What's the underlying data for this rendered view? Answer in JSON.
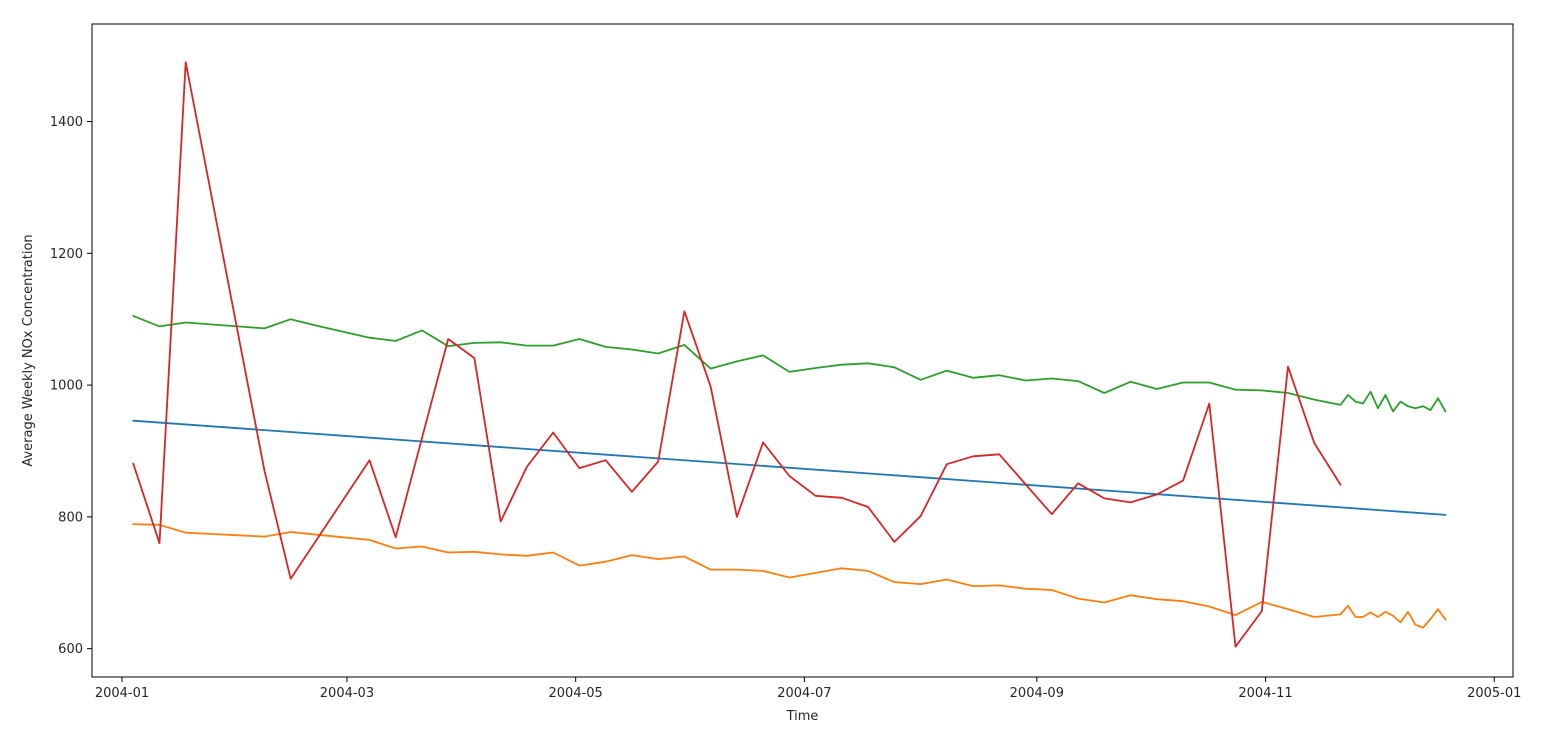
{
  "chart_data": {
    "type": "line",
    "title": "",
    "xlabel": "Time",
    "ylabel": "Average Weekly NOx Concentration",
    "xlim": [
      "2003-12-24",
      "2005-01-06"
    ],
    "ylim": [
      557,
      1548
    ],
    "x_ticks": [
      "2004-01-01",
      "2004-03-01",
      "2004-05-01",
      "2004-07-01",
      "2004-09-01",
      "2004-11-01",
      "2005-01-01"
    ],
    "x_tick_labels": [
      "2004-01",
      "2004-03",
      "2004-05",
      "2004-07",
      "2004-09",
      "2004-11",
      "2005-01"
    ],
    "y_ticks": [
      600,
      800,
      1000,
      1200,
      1400
    ],
    "y_tick_labels": [
      "600",
      "800",
      "1000",
      "1200",
      "1400"
    ],
    "grid": false,
    "legend": "none",
    "series": [
      {
        "color": "#1f77b4",
        "x": [
          "2004-01-04",
          "2004-12-19"
        ],
        "values": [
          946,
          803
        ]
      },
      {
        "color": "#ff7f0e",
        "x": [
          "2004-01-04",
          "2004-01-11",
          "2004-01-18",
          "2004-01-25",
          "2004-02-01",
          "2004-02-08",
          "2004-02-15",
          "2004-02-22",
          "2004-02-29",
          "2004-03-07",
          "2004-03-14",
          "2004-03-21",
          "2004-03-28",
          "2004-04-04",
          "2004-04-11",
          "2004-04-18",
          "2004-04-25",
          "2004-05-02",
          "2004-05-09",
          "2004-05-16",
          "2004-05-23",
          "2004-05-30",
          "2004-06-06",
          "2004-06-13",
          "2004-06-20",
          "2004-06-27",
          "2004-07-04",
          "2004-07-11",
          "2004-07-18",
          "2004-07-25",
          "2004-08-01",
          "2004-08-08",
          "2004-08-15",
          "2004-08-22",
          "2004-08-29",
          "2004-09-05",
          "2004-09-12",
          "2004-09-19",
          "2004-09-26",
          "2004-10-03",
          "2004-10-10",
          "2004-10-17",
          "2004-10-24",
          "2004-10-31",
          "2004-11-07",
          "2004-11-14",
          "2004-11-21",
          "2004-11-23",
          "2004-11-25",
          "2004-11-27",
          "2004-11-29",
          "2004-12-01",
          "2004-12-03",
          "2004-12-05",
          "2004-12-07",
          "2004-12-09",
          "2004-12-11",
          "2004-12-13",
          "2004-12-15",
          "2004-12-17",
          "2004-12-19"
        ],
        "values": [
          789,
          788,
          776,
          774,
          772,
          770,
          777,
          773,
          769,
          765,
          752,
          755,
          746,
          747,
          743,
          741,
          746,
          726,
          732,
          742,
          736,
          740,
          720,
          720,
          718,
          708,
          715,
          722,
          718,
          701,
          698,
          705,
          695,
          696,
          691,
          689,
          676,
          670,
          681,
          675,
          672,
          664,
          651,
          671,
          660,
          648,
          652,
          665,
          648,
          648,
          655,
          648,
          656,
          650,
          640,
          656,
          636,
          632,
          645,
          660,
          644
        ]
      },
      {
        "color": "#2ca02c",
        "x": [
          "2004-01-04",
          "2004-01-11",
          "2004-01-18",
          "2004-01-25",
          "2004-02-01",
          "2004-02-08",
          "2004-02-15",
          "2004-02-22",
          "2004-02-29",
          "2004-03-07",
          "2004-03-14",
          "2004-03-21",
          "2004-03-28",
          "2004-04-04",
          "2004-04-11",
          "2004-04-18",
          "2004-04-25",
          "2004-05-02",
          "2004-05-09",
          "2004-05-16",
          "2004-05-23",
          "2004-05-30",
          "2004-06-06",
          "2004-06-13",
          "2004-06-20",
          "2004-06-27",
          "2004-07-04",
          "2004-07-11",
          "2004-07-18",
          "2004-07-25",
          "2004-08-01",
          "2004-08-08",
          "2004-08-15",
          "2004-08-22",
          "2004-08-29",
          "2004-09-05",
          "2004-09-12",
          "2004-09-19",
          "2004-09-26",
          "2004-10-03",
          "2004-10-10",
          "2004-10-17",
          "2004-10-24",
          "2004-10-31",
          "2004-11-07",
          "2004-11-14",
          "2004-11-21",
          "2004-11-23",
          "2004-11-25",
          "2004-11-27",
          "2004-11-29",
          "2004-12-01",
          "2004-12-03",
          "2004-12-05",
          "2004-12-07",
          "2004-12-09",
          "2004-12-11",
          "2004-12-13",
          "2004-12-15",
          "2004-12-17",
          "2004-12-19"
        ],
        "values": [
          1105,
          1089,
          1095,
          1092,
          1089,
          1086,
          1100,
          1090,
          1081,
          1072,
          1067,
          1083,
          1059,
          1064,
          1065,
          1060,
          1060,
          1070,
          1058,
          1054,
          1048,
          1061,
          1025,
          1036,
          1045,
          1020,
          1026,
          1031,
          1033,
          1027,
          1008,
          1022,
          1011,
          1015,
          1007,
          1010,
          1006,
          988,
          1005,
          994,
          1004,
          1004,
          993,
          992,
          988,
          978,
          970,
          985,
          975,
          972,
          990,
          965,
          985,
          960,
          975,
          968,
          965,
          968,
          962,
          980,
          960
        ]
      },
      {
        "color": "#d62728",
        "x": [
          "2004-01-04",
          "2004-01-11",
          "2004-01-18",
          "2004-02-08",
          "2004-02-15",
          "2004-03-07",
          "2004-03-14",
          "2004-03-28",
          "2004-04-04",
          "2004-04-11",
          "2004-04-18",
          "2004-04-25",
          "2004-05-02",
          "2004-05-09",
          "2004-05-16",
          "2004-05-23",
          "2004-05-30",
          "2004-06-06",
          "2004-06-13",
          "2004-06-20",
          "2004-06-27",
          "2004-07-04",
          "2004-07-11",
          "2004-07-18",
          "2004-07-25",
          "2004-08-01",
          "2004-08-08",
          "2004-08-15",
          "2004-08-22",
          "2004-09-05",
          "2004-09-12",
          "2004-09-19",
          "2004-09-26",
          "2004-10-03",
          "2004-10-10",
          "2004-10-17",
          "2004-10-24",
          "2004-10-31",
          "2004-11-07",
          "2004-11-14",
          "2004-11-21"
        ],
        "values": [
          881,
          760,
          1490,
          870,
          706,
          886,
          769,
          1070,
          1041,
          793,
          876,
          928,
          874,
          886,
          838,
          884,
          1112,
          998,
          800,
          913,
          862,
          832,
          829,
          815,
          762,
          801,
          880,
          892,
          895,
          804,
          851,
          828,
          822,
          834,
          855,
          972,
          603,
          657,
          1028,
          912,
          849
        ]
      }
    ]
  }
}
